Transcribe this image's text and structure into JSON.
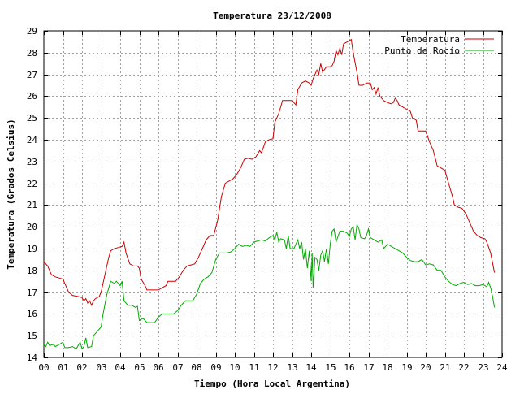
{
  "chart_data": {
    "type": "line",
    "title": "Temperatura 23/12/2008",
    "xlabel": "Tiempo (Hora Local Argentina)",
    "ylabel": "Temperatura (Grados Celsius)",
    "xlim": [
      0,
      24
    ],
    "ylim": [
      14,
      29
    ],
    "x_ticks": [
      "00",
      "01",
      "02",
      "03",
      "04",
      "05",
      "06",
      "07",
      "08",
      "09",
      "10",
      "11",
      "12",
      "13",
      "14",
      "15",
      "16",
      "17",
      "18",
      "19",
      "20",
      "21",
      "22",
      "23",
      "24"
    ],
    "y_ticks": [
      "14",
      "15",
      "16",
      "17",
      "18",
      "19",
      "20",
      "21",
      "22",
      "23",
      "24",
      "25",
      "26",
      "27",
      "28",
      "29"
    ],
    "grid": true,
    "legend_position": "top-right",
    "series": [
      {
        "name": "Temperatura",
        "color": "#cc0000",
        "points": [
          [
            0.0,
            18.4
          ],
          [
            0.2,
            18.2
          ],
          [
            0.4,
            17.8
          ],
          [
            0.6,
            17.7
          ],
          [
            0.8,
            17.65
          ],
          [
            1.0,
            17.6
          ],
          [
            1.1,
            17.4
          ],
          [
            1.3,
            17.0
          ],
          [
            1.5,
            16.85
          ],
          [
            1.8,
            16.8
          ],
          [
            2.0,
            16.75
          ],
          [
            2.1,
            16.6
          ],
          [
            2.2,
            16.7
          ],
          [
            2.3,
            16.5
          ],
          [
            2.4,
            16.6
          ],
          [
            2.5,
            16.4
          ],
          [
            2.6,
            16.6
          ],
          [
            2.7,
            16.7
          ],
          [
            2.9,
            16.8
          ],
          [
            3.0,
            17.0
          ],
          [
            3.2,
            17.8
          ],
          [
            3.4,
            18.6
          ],
          [
            3.5,
            18.9
          ],
          [
            3.7,
            19.0
          ],
          [
            3.9,
            19.05
          ],
          [
            4.1,
            19.1
          ],
          [
            4.2,
            19.3
          ],
          [
            4.3,
            18.8
          ],
          [
            4.5,
            18.3
          ],
          [
            4.7,
            18.2
          ],
          [
            4.9,
            18.2
          ],
          [
            5.0,
            18.1
          ],
          [
            5.1,
            17.6
          ],
          [
            5.3,
            17.3
          ],
          [
            5.4,
            17.1
          ],
          [
            5.6,
            17.1
          ],
          [
            5.8,
            17.1
          ],
          [
            6.0,
            17.1
          ],
          [
            6.2,
            17.2
          ],
          [
            6.4,
            17.3
          ],
          [
            6.5,
            17.5
          ],
          [
            6.7,
            17.5
          ],
          [
            6.9,
            17.5
          ],
          [
            7.1,
            17.7
          ],
          [
            7.3,
            18.0
          ],
          [
            7.5,
            18.2
          ],
          [
            7.7,
            18.25
          ],
          [
            7.9,
            18.3
          ],
          [
            8.1,
            18.6
          ],
          [
            8.3,
            19.0
          ],
          [
            8.5,
            19.4
          ],
          [
            8.7,
            19.6
          ],
          [
            8.9,
            19.6
          ],
          [
            9.1,
            20.3
          ],
          [
            9.3,
            21.4
          ],
          [
            9.5,
            22.0
          ],
          [
            9.7,
            22.1
          ],
          [
            9.9,
            22.2
          ],
          [
            10.1,
            22.4
          ],
          [
            10.3,
            22.7
          ],
          [
            10.5,
            23.1
          ],
          [
            10.7,
            23.15
          ],
          [
            10.9,
            23.1
          ],
          [
            11.1,
            23.2
          ],
          [
            11.3,
            23.5
          ],
          [
            11.4,
            23.4
          ],
          [
            11.6,
            23.9
          ],
          [
            11.8,
            24.0
          ],
          [
            12.0,
            24.05
          ],
          [
            12.1,
            24.8
          ],
          [
            12.3,
            25.2
          ],
          [
            12.5,
            25.8
          ],
          [
            12.7,
            25.8
          ],
          [
            12.9,
            25.8
          ],
          [
            13.0,
            25.8
          ],
          [
            13.2,
            25.6
          ],
          [
            13.3,
            26.3
          ],
          [
            13.5,
            26.6
          ],
          [
            13.7,
            26.7
          ],
          [
            13.9,
            26.6
          ],
          [
            14.0,
            26.5
          ],
          [
            14.1,
            26.8
          ],
          [
            14.3,
            27.2
          ],
          [
            14.4,
            27.0
          ],
          [
            14.5,
            27.5
          ],
          [
            14.6,
            27.1
          ],
          [
            14.8,
            27.35
          ],
          [
            15.0,
            27.35
          ],
          [
            15.1,
            27.4
          ],
          [
            15.2,
            27.6
          ],
          [
            15.3,
            28.1
          ],
          [
            15.4,
            27.9
          ],
          [
            15.5,
            28.2
          ],
          [
            15.6,
            27.9
          ],
          [
            15.7,
            28.4
          ],
          [
            15.9,
            28.5
          ],
          [
            16.1,
            28.6
          ],
          [
            16.2,
            28.0
          ],
          [
            16.4,
            27.1
          ],
          [
            16.5,
            26.5
          ],
          [
            16.7,
            26.5
          ],
          [
            16.9,
            26.6
          ],
          [
            17.1,
            26.6
          ],
          [
            17.2,
            26.3
          ],
          [
            17.3,
            26.4
          ],
          [
            17.4,
            26.1
          ],
          [
            17.5,
            26.4
          ],
          [
            17.6,
            26.0
          ],
          [
            17.8,
            25.8
          ],
          [
            18.0,
            25.7
          ],
          [
            18.2,
            25.65
          ],
          [
            18.3,
            25.7
          ],
          [
            18.4,
            25.9
          ],
          [
            18.5,
            25.8
          ],
          [
            18.6,
            25.6
          ],
          [
            18.8,
            25.5
          ],
          [
            19.0,
            25.4
          ],
          [
            19.2,
            25.3
          ],
          [
            19.3,
            25.0
          ],
          [
            19.5,
            24.9
          ],
          [
            19.6,
            24.4
          ],
          [
            19.8,
            24.4
          ],
          [
            20.0,
            24.4
          ],
          [
            20.2,
            23.9
          ],
          [
            20.4,
            23.5
          ],
          [
            20.6,
            22.8
          ],
          [
            20.8,
            22.7
          ],
          [
            21.0,
            22.6
          ],
          [
            21.2,
            22.0
          ],
          [
            21.4,
            21.4
          ],
          [
            21.5,
            21.0
          ],
          [
            21.7,
            20.9
          ],
          [
            21.9,
            20.85
          ],
          [
            22.1,
            20.6
          ],
          [
            22.3,
            20.2
          ],
          [
            22.5,
            19.8
          ],
          [
            22.7,
            19.6
          ],
          [
            22.9,
            19.5
          ],
          [
            23.1,
            19.45
          ],
          [
            23.2,
            19.3
          ],
          [
            23.4,
            18.8
          ],
          [
            23.6,
            17.9
          ]
        ]
      },
      {
        "name": "Punto de Rocío",
        "color": "#00aa00",
        "points": [
          [
            0.0,
            14.6
          ],
          [
            0.1,
            14.5
          ],
          [
            0.2,
            14.7
          ],
          [
            0.3,
            14.55
          ],
          [
            0.5,
            14.6
          ],
          [
            0.6,
            14.5
          ],
          [
            0.8,
            14.6
          ],
          [
            1.0,
            14.7
          ],
          [
            1.1,
            14.45
          ],
          [
            1.3,
            14.45
          ],
          [
            1.5,
            14.5
          ],
          [
            1.7,
            14.4
          ],
          [
            1.9,
            14.7
          ],
          [
            2.0,
            14.4
          ],
          [
            2.1,
            14.5
          ],
          [
            2.2,
            14.9
          ],
          [
            2.3,
            14.45
          ],
          [
            2.5,
            14.5
          ],
          [
            2.6,
            15.0
          ],
          [
            2.8,
            15.2
          ],
          [
            3.0,
            15.4
          ],
          [
            3.1,
            16.0
          ],
          [
            3.3,
            16.9
          ],
          [
            3.5,
            17.5
          ],
          [
            3.7,
            17.4
          ],
          [
            3.8,
            17.5
          ],
          [
            4.0,
            17.3
          ],
          [
            4.1,
            17.5
          ],
          [
            4.2,
            16.6
          ],
          [
            4.4,
            16.4
          ],
          [
            4.6,
            16.4
          ],
          [
            4.8,
            16.3
          ],
          [
            4.9,
            16.35
          ],
          [
            5.0,
            15.7
          ],
          [
            5.2,
            15.8
          ],
          [
            5.4,
            15.6
          ],
          [
            5.6,
            15.6
          ],
          [
            5.8,
            15.6
          ],
          [
            6.0,
            15.85
          ],
          [
            6.2,
            16.0
          ],
          [
            6.4,
            16.0
          ],
          [
            6.6,
            16.0
          ],
          [
            6.8,
            16.0
          ],
          [
            7.0,
            16.15
          ],
          [
            7.2,
            16.4
          ],
          [
            7.4,
            16.6
          ],
          [
            7.6,
            16.6
          ],
          [
            7.8,
            16.6
          ],
          [
            8.0,
            16.9
          ],
          [
            8.2,
            17.4
          ],
          [
            8.4,
            17.6
          ],
          [
            8.6,
            17.7
          ],
          [
            8.8,
            17.9
          ],
          [
            9.0,
            18.5
          ],
          [
            9.2,
            18.8
          ],
          [
            9.4,
            18.8
          ],
          [
            9.6,
            18.8
          ],
          [
            9.8,
            18.85
          ],
          [
            10.0,
            19.0
          ],
          [
            10.2,
            19.2
          ],
          [
            10.4,
            19.1
          ],
          [
            10.6,
            19.15
          ],
          [
            10.8,
            19.1
          ],
          [
            11.0,
            19.3
          ],
          [
            11.2,
            19.35
          ],
          [
            11.4,
            19.4
          ],
          [
            11.6,
            19.35
          ],
          [
            11.8,
            19.5
          ],
          [
            12.0,
            19.6
          ],
          [
            12.1,
            19.4
          ],
          [
            12.2,
            19.75
          ],
          [
            12.3,
            19.3
          ],
          [
            12.4,
            19.45
          ],
          [
            12.6,
            19.4
          ],
          [
            12.7,
            19.0
          ],
          [
            12.8,
            19.6
          ],
          [
            12.9,
            19.0
          ],
          [
            13.1,
            19.0
          ],
          [
            13.3,
            19.4
          ],
          [
            13.4,
            19.0
          ],
          [
            13.5,
            19.3
          ],
          [
            13.6,
            18.5
          ],
          [
            13.7,
            19.0
          ],
          [
            13.8,
            18.1
          ],
          [
            13.9,
            18.9
          ],
          [
            14.0,
            17.5
          ],
          [
            14.05,
            18.8
          ],
          [
            14.1,
            17.2
          ],
          [
            14.2,
            18.6
          ],
          [
            14.3,
            18.5
          ],
          [
            14.4,
            18.0
          ],
          [
            14.5,
            18.7
          ],
          [
            14.6,
            18.9
          ],
          [
            14.7,
            18.4
          ],
          [
            14.8,
            19.0
          ],
          [
            14.9,
            18.3
          ],
          [
            15.0,
            19.2
          ],
          [
            15.1,
            19.8
          ],
          [
            15.2,
            19.9
          ],
          [
            15.3,
            19.3
          ],
          [
            15.5,
            19.8
          ],
          [
            15.7,
            19.8
          ],
          [
            15.9,
            19.7
          ],
          [
            16.0,
            19.55
          ],
          [
            16.1,
            19.9
          ],
          [
            16.2,
            20.0
          ],
          [
            16.3,
            19.4
          ],
          [
            16.4,
            20.1
          ],
          [
            16.5,
            19.9
          ],
          [
            16.6,
            19.5
          ],
          [
            16.8,
            19.45
          ],
          [
            16.9,
            19.6
          ],
          [
            17.0,
            19.9
          ],
          [
            17.1,
            19.5
          ],
          [
            17.3,
            19.4
          ],
          [
            17.5,
            19.3
          ],
          [
            17.7,
            19.4
          ],
          [
            17.8,
            19.0
          ],
          [
            18.0,
            19.2
          ],
          [
            18.2,
            19.1
          ],
          [
            18.4,
            19.0
          ],
          [
            18.6,
            18.9
          ],
          [
            18.8,
            18.8
          ],
          [
            19.0,
            18.6
          ],
          [
            19.2,
            18.45
          ],
          [
            19.4,
            18.4
          ],
          [
            19.6,
            18.4
          ],
          [
            19.8,
            18.5
          ],
          [
            20.0,
            18.25
          ],
          [
            20.2,
            18.3
          ],
          [
            20.4,
            18.25
          ],
          [
            20.6,
            18.0
          ],
          [
            20.8,
            18.0
          ],
          [
            21.0,
            17.7
          ],
          [
            21.2,
            17.5
          ],
          [
            21.4,
            17.35
          ],
          [
            21.6,
            17.3
          ],
          [
            21.8,
            17.4
          ],
          [
            22.0,
            17.45
          ],
          [
            22.2,
            17.35
          ],
          [
            22.4,
            17.4
          ],
          [
            22.6,
            17.3
          ],
          [
            22.8,
            17.3
          ],
          [
            23.0,
            17.35
          ],
          [
            23.2,
            17.25
          ],
          [
            23.3,
            17.45
          ],
          [
            23.4,
            17.2
          ],
          [
            23.5,
            16.8
          ],
          [
            23.6,
            16.3
          ]
        ]
      }
    ]
  }
}
